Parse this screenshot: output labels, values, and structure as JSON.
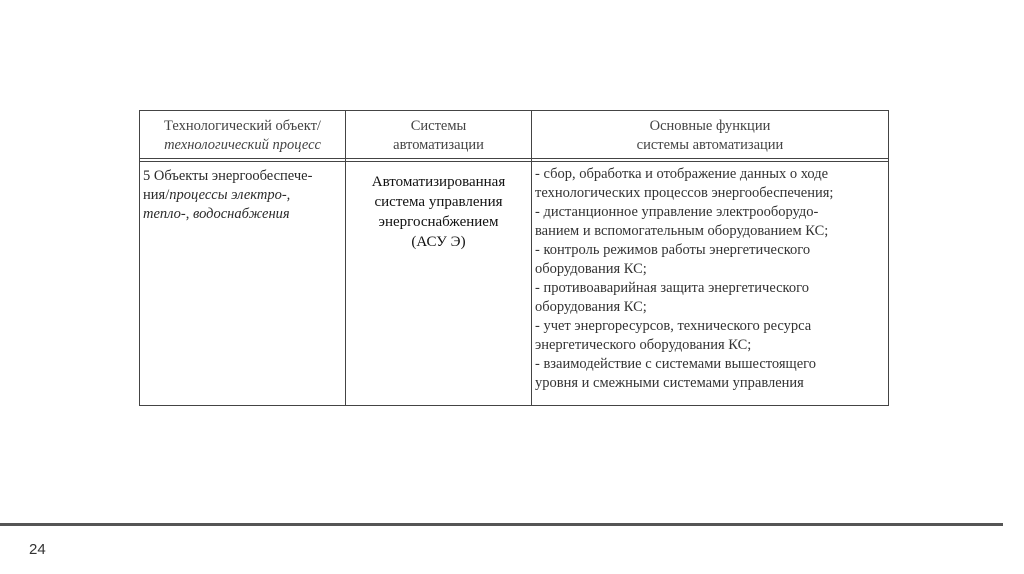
{
  "table": {
    "headers": [
      {
        "lines": [
          "Технологический объект/",
          "технологический процесс"
        ]
      },
      {
        "lines": [
          "Системы",
          "автоматизации"
        ]
      },
      {
        "lines": [
          "Основные функции",
          "системы автоматизации"
        ]
      }
    ],
    "row": {
      "object": {
        "line1": "5 Объекты энергообеспече-",
        "line2_plain": "ния/",
        "line2_italic": "процессы электро-,",
        "line3_italic_a": "тепло-",
        "line3_plain": ", ",
        "line3_italic_b": "водоснабжения"
      },
      "system": [
        "Автоматизированная",
        "система управления",
        "энергоснабжением",
        "(АСУ Э)"
      ],
      "functions": [
        "- сбор, обработка и отображение данных о ходе",
        "технологических процессов энергообеспечения;",
        "- дистанционное управление электрооборудо-",
        "ванием и вспомогательным оборудованием КС;",
        "- контроль режимов работы энергетического",
        "оборудования КС;",
        "- противоаварийная защита энергетического",
        "оборудования КС;",
        "- учет энергоресурсов, технического ресурса",
        "энергетического оборудования КС;",
        "- взаимодействие с системами вышестоящего",
        "уровня и смежными системами управления"
      ]
    }
  },
  "footer": {
    "page_number": "24"
  }
}
